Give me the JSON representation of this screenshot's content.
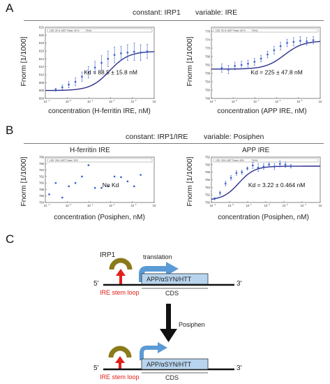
{
  "panel_a": {
    "letter": "A",
    "constant_label": "constant: IRP1",
    "variable_label": "variable: IRE"
  },
  "panel_b": {
    "letter": "B",
    "constant_label": "constant: IRP1/IRE",
    "variable_label": "variable: Posiphen"
  },
  "panel_c": {
    "letter": "C",
    "irp1_label": "IRP1",
    "translation_label": "translation",
    "gene_label_top": "APP/αSYN/HTT",
    "gene_label_bottom": "APP/αSYN/HTT",
    "five_prime": "5'",
    "three_prime": "3'",
    "cds_top": "CDS",
    "cds_bottom": "CDS",
    "ire_label_top": "IRE stem loop",
    "ire_label_bottom": "IRE stem loop",
    "posiphen_label": "Posiphen",
    "colors": {
      "gene_box": "#b8d4ee",
      "arrow_blue": "#5b9bd5",
      "irp1": "#8a7a1a",
      "ire_red": "#e0201b"
    }
  },
  "chart_data": [
    {
      "type": "scatter",
      "ylabel": "Fnorm [1/1000]",
      "xlabel": "concentration (H-ferritin IRE, nM)",
      "annotation": "Kd = 88.5 ± 15.8 nM",
      "x_scale": "log",
      "xlim_exp": [
        -1,
        4
      ],
      "ylim": [
        804,
        822
      ],
      "yticks": [
        804,
        806,
        808,
        810,
        812,
        814,
        816,
        818,
        820,
        822
      ],
      "x": [
        0.3,
        0.6,
        1.2,
        2.4,
        4.8,
        9.6,
        19,
        38,
        76,
        150,
        300,
        600,
        1200,
        2400,
        4800
      ],
      "y": [
        806.2,
        806.8,
        807.5,
        808.2,
        809.5,
        810.6,
        811.8,
        813.0,
        814.0,
        815.0,
        815.4,
        815.6,
        815.8,
        815.6,
        815.9
      ],
      "err": [
        0.4,
        0.6,
        0.8,
        1.0,
        1.2,
        1.4,
        1.6,
        1.8,
        2.0,
        2.0,
        1.8,
        2.0,
        2.2,
        2.0,
        1.8
      ],
      "fit": {
        "type": "hill",
        "bottom": 806.0,
        "top": 815.9,
        "kd": 88.5
      },
      "legend_entries": [
        "LED: 30 %, MST Power: 40 %",
        "Fit Kd"
      ],
      "colors": {
        "points": "#3a5fcd",
        "fit": "#2b2f8a"
      }
    },
    {
      "type": "scatter",
      "ylabel": "Fnorm [1/1000]",
      "xlabel": "concentration (APP IRE, nM)",
      "annotation": "Kd = 225 ± 47.8 nM",
      "x_scale": "log",
      "xlim_exp": [
        -1,
        4
      ],
      "ylim": [
        746,
        780
      ],
      "yticks": [
        746,
        750,
        754,
        758,
        762,
        766,
        770,
        774,
        778
      ],
      "x": [
        0.3,
        0.6,
        1.2,
        2.4,
        4.8,
        9.6,
        19,
        38,
        76,
        150,
        300,
        600,
        1200,
        2400,
        4800
      ],
      "y": [
        760.5,
        759.8,
        761.5,
        762.0,
        762.6,
        763.5,
        765.0,
        767.0,
        769.0,
        771.0,
        772.5,
        773.0,
        773.5,
        773.2,
        773.8
      ],
      "err": [
        2.0,
        2.0,
        1.8,
        1.8,
        1.6,
        1.6,
        1.6,
        1.6,
        1.8,
        1.8,
        1.8,
        2.0,
        2.0,
        1.8,
        1.8
      ],
      "fit": {
        "type": "hill",
        "bottom": 760.0,
        "top": 773.5,
        "kd": 225
      },
      "legend_entries": [
        "LED: 30 %, MST Power: 60 %",
        "Fit Kd"
      ],
      "colors": {
        "points": "#3a5fcd",
        "fit": "#2b2f8a"
      }
    },
    {
      "type": "scatter",
      "title": "H-ferritin IRE",
      "ylabel": "Fnorm [1/1000]",
      "xlabel": "concentration (Posiphen, nM)",
      "annotation": "No Kd",
      "x_scale": "log",
      "xlim_exp": [
        -1,
        4
      ],
      "ylim": [
        754,
        768
      ],
      "yticks": [
        754,
        756,
        758,
        760,
        762,
        764,
        766,
        768
      ],
      "x": [
        0.15,
        0.3,
        0.6,
        1.2,
        2.4,
        4.8,
        9.6,
        19,
        38,
        76,
        150,
        300,
        600,
        1200,
        2400
      ],
      "y": [
        756.5,
        760.0,
        755.5,
        759.0,
        760.0,
        762.0,
        765.5,
        758.5,
        758.5,
        759.0,
        762.0,
        761.8,
        760.5,
        759.0,
        762.5
      ],
      "legend_entries": [
        "LED: 30%, MST Power: 20%"
      ],
      "colors": {
        "points": "#3a5fcd"
      }
    },
    {
      "type": "scatter",
      "title": "APP IRE",
      "ylabel": "Fnorm [1/1000]",
      "xlabel": "concentration (Posiphen, nM)",
      "annotation": "Kd = 3.22 ± 0.464 nM",
      "x_scale": "log",
      "xlim_exp": [
        -1,
        5
      ],
      "ylim": [
        750,
        762
      ],
      "yticks": [
        750,
        752,
        754,
        756,
        758,
        760,
        762
      ],
      "x": [
        0.15,
        0.3,
        0.6,
        1.2,
        2.4,
        4.8,
        9.6,
        19,
        38,
        76,
        150,
        300,
        600,
        1200,
        2400
      ],
      "y": [
        751.0,
        752.5,
        755.0,
        756.5,
        757.8,
        758.0,
        759.0,
        759.8,
        759.2,
        759.5,
        760.0,
        759.5,
        760.2,
        760.0,
        759.6
      ],
      "err": [
        0.3,
        0.5,
        0.6,
        0.6,
        0.6,
        0.5,
        0.4,
        0.8,
        1.0,
        0.8,
        0.5,
        0.8,
        0.8,
        0.7,
        0.5
      ],
      "fit": {
        "type": "hill",
        "bottom": 750.6,
        "top": 759.6,
        "kd": 3.22
      },
      "legend_entries": [
        "LED: 30%, MST Power: 60%",
        "Fit Kd"
      ],
      "colors": {
        "points": "#3a5fcd",
        "fit": "#2b2f8a"
      }
    }
  ]
}
